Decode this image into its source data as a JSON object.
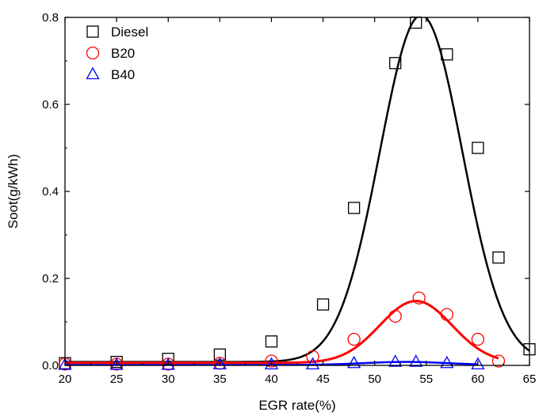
{
  "chart_data": {
    "type": "scatter",
    "xlabel": "EGR rate(%)",
    "ylabel": "Soot(g/kWh)",
    "xlim": [
      20,
      65
    ],
    "ylim": [
      0,
      0.8
    ],
    "x_ticks": [
      20,
      25,
      30,
      35,
      40,
      45,
      50,
      55,
      60,
      65
    ],
    "y_ticks": [
      0.0,
      0.2,
      0.4,
      0.6,
      0.8
    ],
    "x_tick_labels": [
      "20",
      "25",
      "30",
      "35",
      "40",
      "45",
      "50",
      "55",
      "60",
      "65"
    ],
    "y_tick_labels": [
      "0.0",
      "0.2",
      "0.4",
      "0.6",
      "0.8"
    ],
    "grid": false,
    "legend_position": "top-left",
    "series": [
      {
        "name": "Diesel",
        "marker": "square",
        "color": "#000000",
        "points": [
          [
            20,
            0.005
          ],
          [
            25,
            0.008
          ],
          [
            30,
            0.015
          ],
          [
            35,
            0.025
          ],
          [
            40,
            0.055
          ],
          [
            45,
            0.14
          ],
          [
            48,
            0.362
          ],
          [
            52,
            0.695
          ],
          [
            54,
            0.788
          ],
          [
            57,
            0.715
          ],
          [
            60,
            0.5
          ],
          [
            62,
            0.248
          ],
          [
            65,
            0.037
          ]
        ],
        "fit": {
          "baseline": 0.008,
          "amplitude": 0.797,
          "center": 54.5,
          "sigma": 4.0
        }
      },
      {
        "name": "B20",
        "marker": "circle",
        "color": "#ff0000",
        "points": [
          [
            20,
            0.003
          ],
          [
            25,
            0.003
          ],
          [
            30,
            0.003
          ],
          [
            35,
            0.005
          ],
          [
            40,
            0.01
          ],
          [
            44,
            0.02
          ],
          [
            48,
            0.06
          ],
          [
            52,
            0.113
          ],
          [
            54.3,
            0.155
          ],
          [
            57,
            0.117
          ],
          [
            60,
            0.06
          ],
          [
            62,
            0.01
          ]
        ],
        "fit": {
          "baseline": 0.006,
          "amplitude": 0.142,
          "center": 54.0,
          "sigma": 3.5
        }
      },
      {
        "name": "B40",
        "marker": "triangle",
        "color": "#0000ff",
        "points": [
          [
            20,
            0.001
          ],
          [
            25,
            0.001
          ],
          [
            30,
            0.001
          ],
          [
            35,
            0.002
          ],
          [
            40,
            0.002
          ],
          [
            44,
            0.002
          ],
          [
            48,
            0.005
          ],
          [
            52,
            0.008
          ],
          [
            54,
            0.008
          ],
          [
            57,
            0.005
          ],
          [
            60,
            0.002
          ]
        ],
        "fit": {
          "baseline": 0.001,
          "amplitude": 0.007,
          "center": 53.0,
          "sigma": 4.0
        }
      }
    ]
  }
}
